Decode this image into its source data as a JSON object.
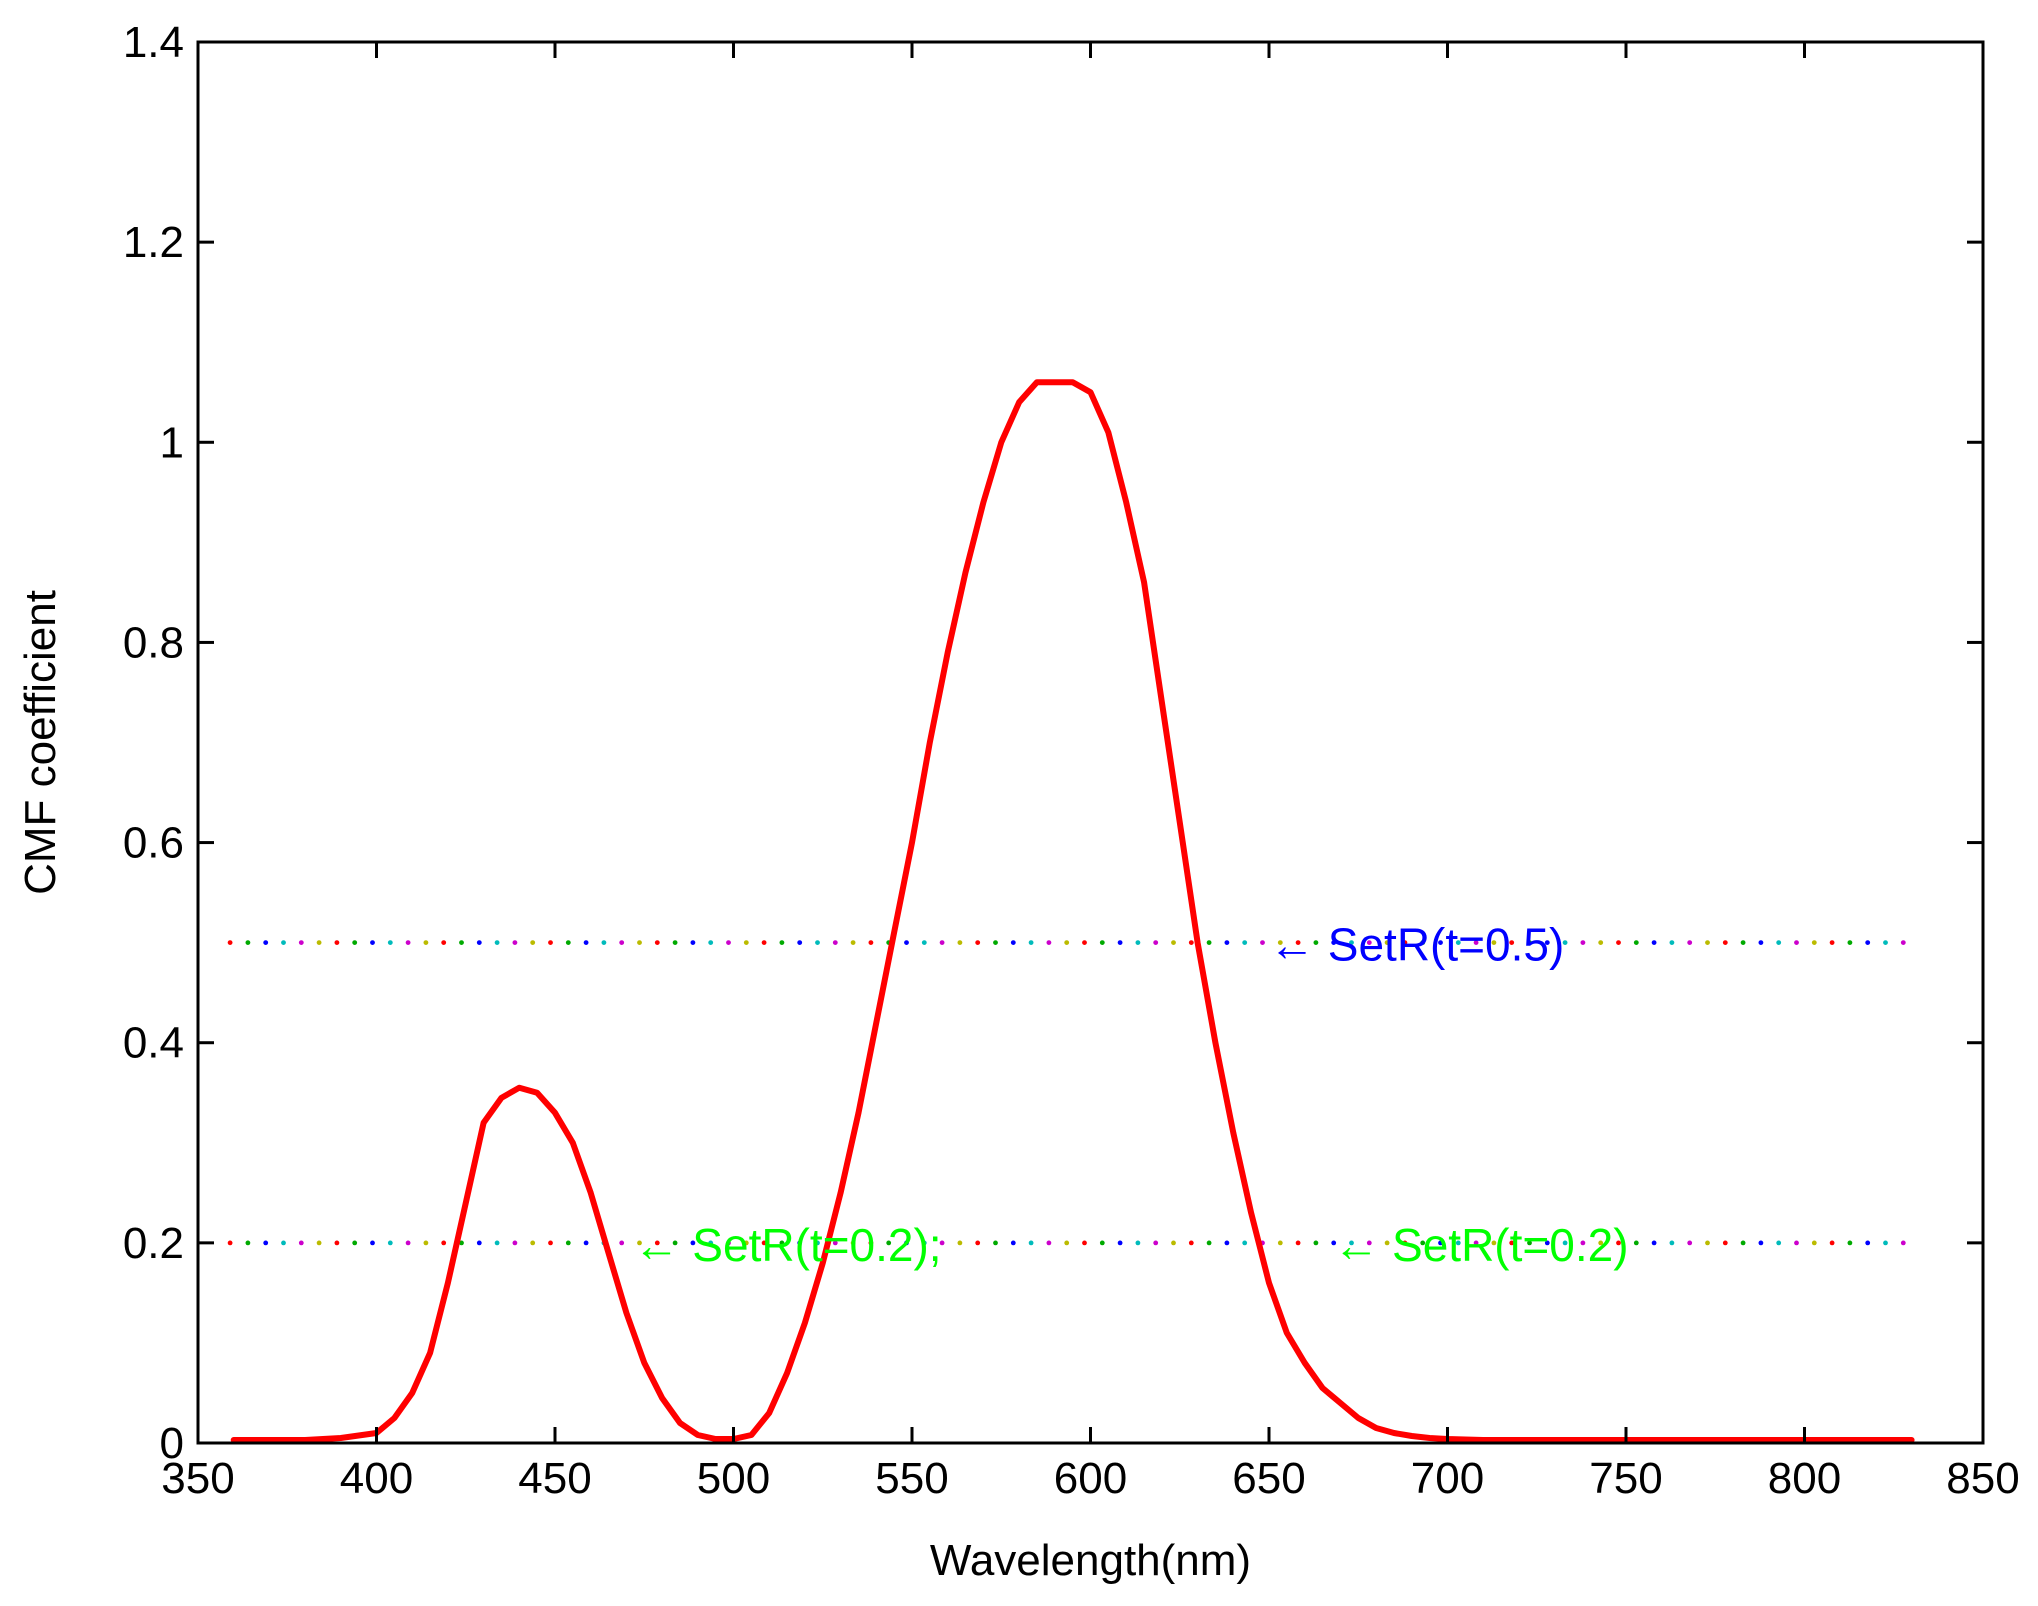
{
  "chart_data": {
    "type": "line",
    "title": "",
    "xlabel": "Wavelength(nm)",
    "ylabel": "CMF coefficient",
    "xlim": [
      350,
      850
    ],
    "ylim": [
      0,
      1.4
    ],
    "x_ticks": [
      350,
      400,
      450,
      500,
      550,
      600,
      650,
      700,
      750,
      800,
      850
    ],
    "y_ticks": [
      0,
      0.2,
      0.4,
      0.6,
      0.8,
      1,
      1.2,
      1.4
    ],
    "grid": false,
    "legend": "none",
    "series": [
      {
        "color": "#ff0000",
        "x": [
          360,
          370,
          380,
          390,
          400,
          405,
          410,
          415,
          420,
          425,
          430,
          435,
          440,
          445,
          450,
          455,
          460,
          465,
          470,
          475,
          480,
          485,
          490,
          495,
          500,
          505,
          510,
          515,
          520,
          525,
          530,
          535,
          540,
          545,
          550,
          555,
          560,
          565,
          570,
          575,
          580,
          585,
          590,
          595,
          600,
          605,
          610,
          615,
          620,
          625,
          630,
          635,
          640,
          645,
          650,
          655,
          660,
          665,
          670,
          675,
          680,
          685,
          690,
          695,
          700,
          710,
          720,
          740,
          760,
          780,
          800,
          820,
          830
        ],
        "y": [
          0.003,
          0.003,
          0.003,
          0.005,
          0.01,
          0.025,
          0.05,
          0.09,
          0.16,
          0.24,
          0.32,
          0.345,
          0.355,
          0.35,
          0.33,
          0.3,
          0.25,
          0.19,
          0.13,
          0.08,
          0.045,
          0.02,
          0.008,
          0.004,
          0.004,
          0.008,
          0.03,
          0.07,
          0.12,
          0.18,
          0.25,
          0.33,
          0.42,
          0.51,
          0.6,
          0.7,
          0.79,
          0.87,
          0.94,
          1.0,
          1.04,
          1.06,
          1.06,
          1.06,
          1.05,
          1.01,
          0.94,
          0.86,
          0.74,
          0.62,
          0.5,
          0.4,
          0.31,
          0.23,
          0.16,
          0.11,
          0.08,
          0.055,
          0.04,
          0.025,
          0.015,
          0.01,
          0.007,
          0.005,
          0.004,
          0.003,
          0.003,
          0.003,
          0.003,
          0.003,
          0.003,
          0.003,
          0.003
        ]
      }
    ],
    "reference_lines": [
      {
        "y": 0.5,
        "x_range": [
          359,
          829
        ],
        "style": "dotted-multicolor"
      },
      {
        "y": 0.2,
        "x_range": [
          359,
          829
        ],
        "style": "dotted-multicolor"
      }
    ],
    "dot_colors": [
      "#ff0000",
      "#00aa00",
      "#0000ff",
      "#00bbbb",
      "#cc00cc",
      "#bbbb00"
    ],
    "annotations": [
      {
        "text": "← SetR(t=0.5)",
        "x": 650,
        "y": 0.5,
        "color": "#0000ff"
      },
      {
        "text": "← SetR(t=0.2);",
        "x": 472,
        "y": 0.2,
        "color": "#00ff00"
      },
      {
        "text": "← SetR(t=0.2)",
        "x": 668,
        "y": 0.2,
        "color": "#00ff00"
      }
    ]
  }
}
